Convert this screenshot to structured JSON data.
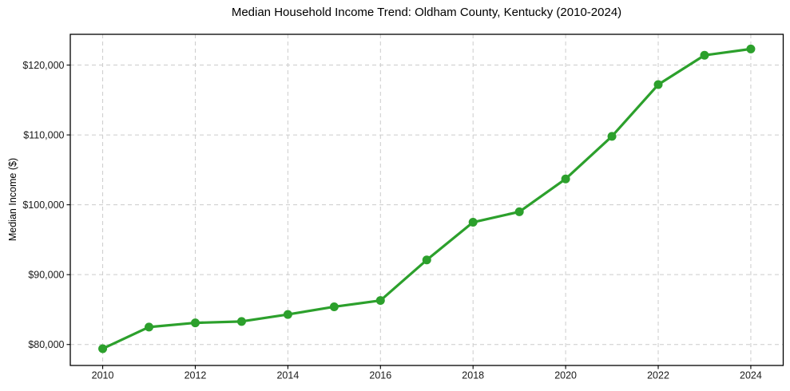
{
  "chart_data": {
    "type": "line",
    "title": "Median Household Income Trend: Oldham County, Kentucky (2010-2024)",
    "xlabel": "",
    "ylabel": "Median Income ($)",
    "x": [
      2010,
      2011,
      2012,
      2013,
      2014,
      2015,
      2016,
      2017,
      2018,
      2019,
      2020,
      2021,
      2022,
      2023,
      2024
    ],
    "values": [
      79400,
      82500,
      83100,
      83300,
      84300,
      85400,
      86300,
      92100,
      97500,
      99000,
      103700,
      109800,
      117200,
      121400,
      122300
    ],
    "x_ticks": [
      2010,
      2012,
      2014,
      2016,
      2018,
      2020,
      2022,
      2024
    ],
    "x_tick_labels": [
      "2010",
      "2012",
      "2014",
      "2016",
      "2018",
      "2020",
      "2022",
      "2024"
    ],
    "y_ticks": [
      80000,
      90000,
      100000,
      110000,
      120000
    ],
    "y_tick_labels": [
      "$80,000",
      "$90,000",
      "$100,000",
      "$110,000",
      "$120,000"
    ],
    "xlim": [
      2009.3,
      2024.7
    ],
    "ylim": [
      77000,
      124400
    ],
    "grid": true,
    "grid_style": "dashed",
    "legend": false,
    "marker": "circle",
    "colors": {
      "line": "#2ca02c",
      "marker": "#2ca02c",
      "grid": "#cccccc",
      "spine": "#000000",
      "tick_text": "#191919",
      "background": "#ffffff"
    }
  }
}
